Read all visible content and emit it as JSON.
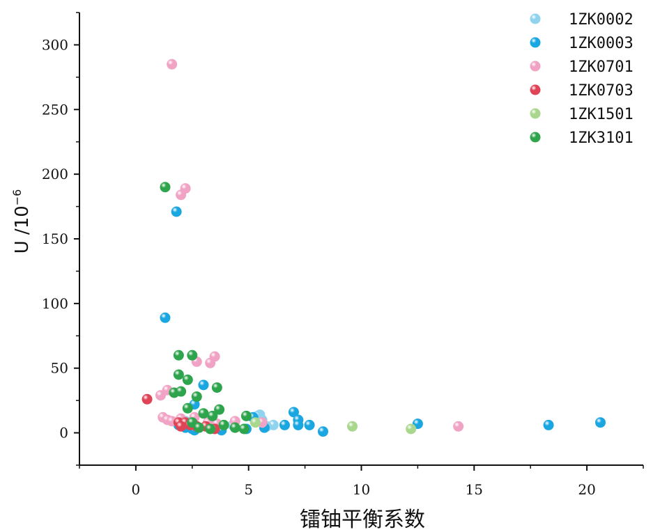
{
  "chart_data": {
    "type": "scatter",
    "xlabel": "镭铀平衡系数",
    "ylabel_main": "U /10",
    "ylabel_exp": "−6",
    "xlim": [
      -2.5,
      22.5
    ],
    "ylim": [
      -25,
      325
    ],
    "xticks": [
      0,
      5,
      10,
      15,
      20
    ],
    "yticks": [
      0,
      50,
      100,
      150,
      200,
      250,
      300
    ],
    "grid": false,
    "legend_position": "top-right",
    "series": [
      {
        "name": "1ZK0002",
        "color": "#8fd3ee",
        "points": [
          [
            5.5,
            14
          ],
          [
            6.1,
            6
          ],
          [
            5.6,
            10
          ],
          [
            5.4,
            13
          ],
          [
            3.3,
            8
          ],
          [
            3.6,
            5
          ],
          [
            2.2,
            9
          ],
          [
            5.8,
            5
          ],
          [
            4.3,
            6
          ],
          [
            2.8,
            4
          ]
        ]
      },
      {
        "name": "1ZK0003",
        "color": "#1aa6e0",
        "points": [
          [
            1.8,
            171
          ],
          [
            1.3,
            89
          ],
          [
            3.0,
            37
          ],
          [
            2.6,
            22
          ],
          [
            7.0,
            16
          ],
          [
            7.2,
            10
          ],
          [
            5.2,
            12
          ],
          [
            7.7,
            6
          ],
          [
            7.2,
            6
          ],
          [
            6.6,
            6
          ],
          [
            5.7,
            4
          ],
          [
            8.3,
            1
          ],
          [
            12.5,
            7
          ],
          [
            18.3,
            6
          ],
          [
            20.6,
            8
          ],
          [
            3.8,
            2
          ],
          [
            2.5,
            3
          ],
          [
            2.2,
            4
          ],
          [
            1.9,
            6
          ],
          [
            4.9,
            3
          ],
          [
            2.6,
            2
          ]
        ]
      },
      {
        "name": "1ZK0701",
        "color": "#f0a3c4",
        "points": [
          [
            1.6,
            285
          ],
          [
            2.2,
            189
          ],
          [
            2.0,
            184
          ],
          [
            3.5,
            59
          ],
          [
            3.3,
            54
          ],
          [
            2.7,
            55
          ],
          [
            1.4,
            33
          ],
          [
            1.1,
            29
          ],
          [
            1.2,
            12
          ],
          [
            1.4,
            10
          ],
          [
            1.6,
            9
          ],
          [
            2.0,
            11
          ],
          [
            2.6,
            12
          ],
          [
            3.2,
            8
          ],
          [
            3.6,
            7
          ],
          [
            4.4,
            9
          ],
          [
            5.6,
            8
          ],
          [
            14.3,
            5
          ]
        ]
      },
      {
        "name": "1ZK0703",
        "color": "#df4456",
        "points": [
          [
            0.5,
            26
          ],
          [
            1.9,
            8
          ],
          [
            2.2,
            8
          ],
          [
            2.4,
            6
          ],
          [
            2.7,
            5
          ],
          [
            3.1,
            5
          ],
          [
            3.5,
            3
          ],
          [
            2.0,
            5
          ]
        ]
      },
      {
        "name": "1ZK1501",
        "color": "#a9d78e",
        "points": [
          [
            5.3,
            8
          ],
          [
            9.6,
            5
          ],
          [
            12.2,
            3
          ]
        ]
      },
      {
        "name": "1ZK3101",
        "color": "#2ea44c",
        "points": [
          [
            1.3,
            190
          ],
          [
            1.9,
            60
          ],
          [
            2.5,
            60
          ],
          [
            1.9,
            45
          ],
          [
            2.3,
            41
          ],
          [
            3.6,
            35
          ],
          [
            1.7,
            31
          ],
          [
            2.0,
            32
          ],
          [
            2.7,
            28
          ],
          [
            2.3,
            19
          ],
          [
            3.0,
            15
          ],
          [
            3.7,
            18
          ],
          [
            3.4,
            13
          ],
          [
            4.9,
            13
          ],
          [
            2.5,
            8
          ],
          [
            3.9,
            6
          ],
          [
            2.8,
            4
          ],
          [
            3.3,
            3
          ],
          [
            4.4,
            4
          ],
          [
            4.8,
            3
          ]
        ]
      }
    ]
  }
}
